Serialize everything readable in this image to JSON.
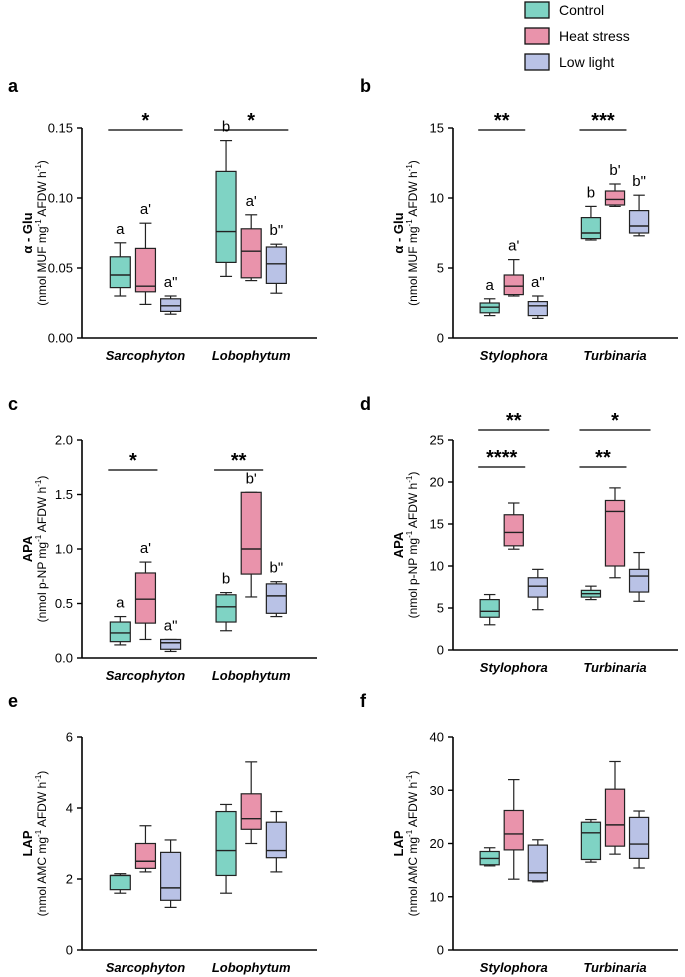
{
  "legend": {
    "items": [
      {
        "label": "Control",
        "color": "#7fd3c4"
      },
      {
        "label": "Heat stress",
        "color": "#e993ab"
      },
      {
        "label": "Low light",
        "color": "#b9c2e6"
      }
    ]
  },
  "chart_data": [
    {
      "panel": "a",
      "type": "box",
      "ylabel": "α - Glu",
      "yunit": "(nmol MUF mg-1 AFDW h-1)",
      "ylim": [
        0,
        0.15
      ],
      "yticks": [
        "0.00",
        "0.05",
        "0.10",
        "0.15"
      ],
      "categories": [
        "Sarcophyton",
        "Lobophytum"
      ],
      "series": [
        {
          "name": "Control",
          "boxes": [
            {
              "min": 0.03,
              "q1": 0.036,
              "median": 0.045,
              "q3": 0.058,
              "max": 0.068
            },
            {
              "min": 0.044,
              "q1": 0.054,
              "median": 0.076,
              "q3": 0.119,
              "max": 0.141
            }
          ]
        },
        {
          "name": "Heat stress",
          "boxes": [
            {
              "min": 0.024,
              "q1": 0.033,
              "median": 0.037,
              "q3": 0.064,
              "max": 0.082
            },
            {
              "min": 0.041,
              "q1": 0.043,
              "median": 0.062,
              "q3": 0.078,
              "max": 0.088
            }
          ]
        },
        {
          "name": "Low light",
          "boxes": [
            {
              "min": 0.017,
              "q1": 0.019,
              "median": 0.023,
              "q3": 0.028,
              "max": 0.03
            },
            {
              "min": 0.032,
              "q1": 0.039,
              "median": 0.053,
              "q3": 0.065,
              "max": 0.067
            }
          ]
        }
      ],
      "letters": [
        [
          "a",
          "a'",
          "a\""
        ],
        [
          "b",
          "a'",
          "b\""
        ]
      ],
      "sig": [
        {
          "text": "*",
          "group": 0,
          "from": 0,
          "to": 2
        },
        {
          "text": "*",
          "group": 1,
          "from": 0,
          "to": 2
        }
      ]
    },
    {
      "panel": "b",
      "type": "box",
      "ylabel": "α - Glu",
      "yunit": "(nmol MUF mg-1 AFDW h-1)",
      "ylim": [
        0,
        15
      ],
      "yticks": [
        "0",
        "5",
        "10",
        "15"
      ],
      "categories": [
        "Stylophora",
        "Turbinaria"
      ],
      "series": [
        {
          "name": "Control",
          "boxes": [
            {
              "min": 1.6,
              "q1": 1.8,
              "median": 2.2,
              "q3": 2.5,
              "max": 2.8
            },
            {
              "min": 7.0,
              "q1": 7.1,
              "median": 7.5,
              "q3": 8.6,
              "max": 9.4
            }
          ]
        },
        {
          "name": "Heat stress",
          "boxes": [
            {
              "min": 3.0,
              "q1": 3.1,
              "median": 3.7,
              "q3": 4.5,
              "max": 5.6
            },
            {
              "min": 9.4,
              "q1": 9.5,
              "median": 9.9,
              "q3": 10.5,
              "max": 11.0
            }
          ]
        },
        {
          "name": "Low light",
          "boxes": [
            {
              "min": 1.4,
              "q1": 1.6,
              "median": 2.3,
              "q3": 2.6,
              "max": 3.0
            },
            {
              "min": 7.3,
              "q1": 7.5,
              "median": 8.0,
              "q3": 9.1,
              "max": 10.2
            }
          ]
        }
      ],
      "letters": [
        [
          "a",
          "a'",
          "a\""
        ],
        [
          "b",
          "b'",
          "b\""
        ]
      ],
      "sig": [
        {
          "text": "**",
          "group": 0,
          "from": 0,
          "to": 1
        },
        {
          "text": "***",
          "group": 1,
          "from": 0,
          "to": 1
        }
      ]
    },
    {
      "panel": "c",
      "type": "box",
      "ylabel": "APA",
      "yunit": "(nmol p-NP mg-1 AFDW h-1)",
      "ylim": [
        0,
        2.0
      ],
      "yticks": [
        "0.0",
        "0.5",
        "1.0",
        "1.5",
        "2.0"
      ],
      "categories": [
        "Sarcophyton",
        "Lobophytum"
      ],
      "series": [
        {
          "name": "Control",
          "boxes": [
            {
              "min": 0.12,
              "q1": 0.15,
              "median": 0.23,
              "q3": 0.33,
              "max": 0.38
            },
            {
              "min": 0.25,
              "q1": 0.33,
              "median": 0.47,
              "q3": 0.58,
              "max": 0.6
            }
          ]
        },
        {
          "name": "Heat stress",
          "boxes": [
            {
              "min": 0.17,
              "q1": 0.32,
              "median": 0.54,
              "q3": 0.78,
              "max": 0.88
            },
            {
              "min": 0.56,
              "q1": 0.77,
              "median": 1.0,
              "q3": 1.52,
              "max": 1.52
            }
          ]
        },
        {
          "name": "Low light",
          "boxes": [
            {
              "min": 0.06,
              "q1": 0.08,
              "median": 0.14,
              "q3": 0.17,
              "max": 0.17
            },
            {
              "min": 0.38,
              "q1": 0.41,
              "median": 0.57,
              "q3": 0.68,
              "max": 0.7
            }
          ]
        }
      ],
      "letters": [
        [
          "a",
          "a'",
          "a\""
        ],
        [
          "b",
          "b'",
          "b\""
        ]
      ],
      "sig": [
        {
          "text": "*",
          "group": 0,
          "from": 0,
          "to": 1
        },
        {
          "text": "**",
          "group": 1,
          "from": 0,
          "to": 1
        }
      ]
    },
    {
      "panel": "d",
      "type": "box",
      "ylabel": "APA",
      "yunit": "(nmol p-NP mg-1 AFDW h-1)",
      "ylim": [
        0,
        25
      ],
      "yticks": [
        "0",
        "5",
        "10",
        "15",
        "20",
        "25"
      ],
      "categories": [
        "Stylophora",
        "Turbinaria"
      ],
      "series": [
        {
          "name": "Control",
          "boxes": [
            {
              "min": 3.0,
              "q1": 3.9,
              "median": 4.6,
              "q3": 6.0,
              "max": 6.6
            },
            {
              "min": 6.0,
              "q1": 6.3,
              "median": 6.7,
              "q3": 7.1,
              "max": 7.6
            }
          ]
        },
        {
          "name": "Heat stress",
          "boxes": [
            {
              "min": 12.0,
              "q1": 12.4,
              "median": 14.0,
              "q3": 16.1,
              "max": 17.5
            },
            {
              "min": 8.6,
              "q1": 10.0,
              "median": 16.5,
              "q3": 17.8,
              "max": 19.3
            }
          ]
        },
        {
          "name": "Low light",
          "boxes": [
            {
              "min": 4.8,
              "q1": 6.3,
              "median": 7.6,
              "q3": 8.6,
              "max": 9.6
            },
            {
              "min": 5.8,
              "q1": 6.9,
              "median": 8.8,
              "q3": 9.6,
              "max": 11.6
            }
          ]
        }
      ],
      "letters": [],
      "sig": [
        {
          "text": "**",
          "group": 0,
          "from": 0,
          "to": 2
        },
        {
          "text": "****",
          "group": 0,
          "from": 0,
          "to": 1
        },
        {
          "text": "*",
          "group": 1,
          "from": 0,
          "to": 2
        },
        {
          "text": "**",
          "group": 1,
          "from": 0,
          "to": 1
        }
      ]
    },
    {
      "panel": "e",
      "type": "box",
      "ylabel": "LAP",
      "yunit": "(nmol AMC mg-1 AFDW h-1)",
      "ylim": [
        0,
        6
      ],
      "yticks": [
        "0",
        "2",
        "4",
        "6"
      ],
      "categories": [
        "Sarcophyton",
        "Lobophytum"
      ],
      "series": [
        {
          "name": "Control",
          "boxes": [
            {
              "min": 1.6,
              "q1": 1.7,
              "median": 2.1,
              "q3": 2.1,
              "max": 2.15
            },
            {
              "min": 1.6,
              "q1": 2.1,
              "median": 2.8,
              "q3": 3.9,
              "max": 4.1
            }
          ]
        },
        {
          "name": "Heat stress",
          "boxes": [
            {
              "min": 2.2,
              "q1": 2.3,
              "median": 2.5,
              "q3": 3.0,
              "max": 3.5
            },
            {
              "min": 3.0,
              "q1": 3.4,
              "median": 3.7,
              "q3": 4.4,
              "max": 5.3
            }
          ]
        },
        {
          "name": "Low light",
          "boxes": [
            {
              "min": 1.2,
              "q1": 1.4,
              "median": 1.75,
              "q3": 2.75,
              "max": 3.1
            },
            {
              "min": 2.2,
              "q1": 2.6,
              "median": 2.8,
              "q3": 3.6,
              "max": 3.9
            }
          ]
        }
      ],
      "letters": [],
      "sig": []
    },
    {
      "panel": "f",
      "type": "box",
      "ylabel": "LAP",
      "yunit": "(nmol AMC mg-1 AFDW h-1)",
      "ylim": [
        0,
        40
      ],
      "yticks": [
        "0",
        "10",
        "20",
        "30",
        "40"
      ],
      "categories": [
        "Stylophora",
        "Turbinaria"
      ],
      "series": [
        {
          "name": "Control",
          "boxes": [
            {
              "min": 15.8,
              "q1": 16.0,
              "median": 17.2,
              "q3": 18.5,
              "max": 19.2
            },
            {
              "min": 16.5,
              "q1": 17.0,
              "median": 22.0,
              "q3": 24.0,
              "max": 24.5
            }
          ]
        },
        {
          "name": "Heat stress",
          "boxes": [
            {
              "min": 13.3,
              "q1": 18.8,
              "median": 21.8,
              "q3": 26.2,
              "max": 32.0
            },
            {
              "min": 18.0,
              "q1": 19.5,
              "median": 23.5,
              "q3": 30.2,
              "max": 35.4
            }
          ]
        },
        {
          "name": "Low light",
          "boxes": [
            {
              "min": 12.8,
              "q1": 13.0,
              "median": 14.5,
              "q3": 19.7,
              "max": 20.7
            },
            {
              "min": 15.4,
              "q1": 17.2,
              "median": 19.9,
              "q3": 24.9,
              "max": 26.1
            }
          ]
        }
      ],
      "letters": [],
      "sig": []
    }
  ]
}
